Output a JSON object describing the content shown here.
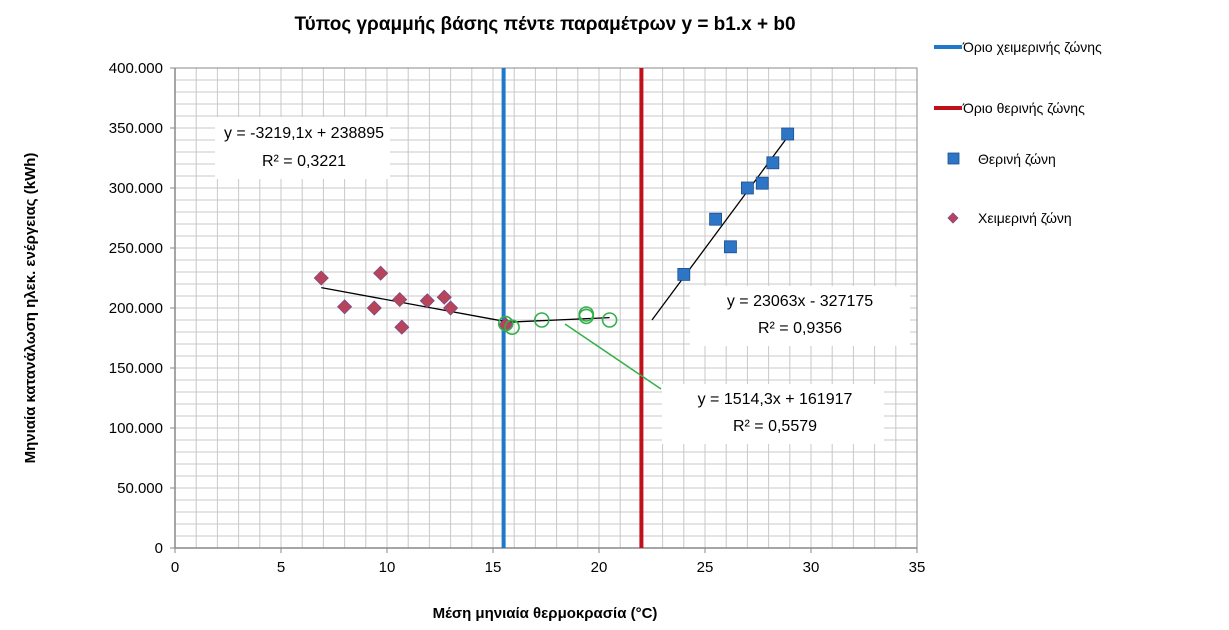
{
  "chart_data": {
    "type": "scatter",
    "title": "Τύπος γραμμής βάσης πέντε παραμέτρων  y = b1.x + b0",
    "xlabel": "Μέση μηνιαία θερμοκρασία (°C)",
    "ylabel": "Μηνιαία κατανάλωση ηλεκ. ενέργειας (kWh)",
    "xlim": [
      0,
      35
    ],
    "ylim": [
      0,
      400000
    ],
    "x_ticks": [
      "0",
      "5",
      "10",
      "15",
      "20",
      "25",
      "30",
      "35"
    ],
    "y_ticks": [
      "0",
      "50.000",
      "100.000",
      "150.000",
      "200.000",
      "250.000",
      "300.000",
      "350.000",
      "400.000"
    ],
    "grid": true,
    "legend_position": "right",
    "series": [
      {
        "name": "Όριο χειμερινής  ζώνης",
        "kind": "vline",
        "x": 15.5,
        "color": "#1f78c8"
      },
      {
        "name": "Όριο θερινής  ζώνης",
        "kind": "vline",
        "x": 22,
        "color": "#c0111a"
      },
      {
        "name": "Θερινή  ζώνη",
        "kind": "square",
        "color": "#2e75c6",
        "points": [
          [
            24.0,
            228000
          ],
          [
            25.5,
            274000
          ],
          [
            26.2,
            251000
          ],
          [
            27.0,
            300000
          ],
          [
            27.7,
            304000
          ],
          [
            28.2,
            321000
          ],
          [
            28.9,
            345000
          ]
        ]
      },
      {
        "name": "Χειμερινή  ζώνη",
        "kind": "diamond",
        "color": "#b8445a",
        "points": [
          [
            6.9,
            225000
          ],
          [
            8.0,
            201000
          ],
          [
            9.4,
            200000
          ],
          [
            9.7,
            229000
          ],
          [
            10.6,
            207000
          ],
          [
            10.7,
            184000
          ],
          [
            11.9,
            206000
          ],
          [
            12.7,
            209000
          ],
          [
            13.0,
            200000
          ],
          [
            15.6,
            186000
          ]
        ]
      },
      {
        "kind": "circle",
        "color": "#33b04a",
        "points": [
          [
            15.6,
            187000
          ],
          [
            15.9,
            184000
          ],
          [
            17.3,
            190000
          ],
          [
            19.4,
            193000
          ],
          [
            19.4,
            195000
          ],
          [
            20.5,
            190000
          ]
        ]
      }
    ],
    "trendlines": [
      {
        "kind": "winter",
        "color": "#000000",
        "from": [
          6.9,
          217000
        ],
        "to": [
          15.5,
          189000
        ]
      },
      {
        "kind": "middle",
        "color": "#000000",
        "from": [
          15.5,
          188000
        ],
        "to": [
          20.5,
          192000
        ]
      },
      {
        "kind": "summer",
        "color": "#000000",
        "from": [
          22.5,
          190000
        ],
        "to": [
          29.0,
          345000
        ]
      }
    ],
    "annotations": [
      {
        "equation": "y = -3219,1x + 238895",
        "r2": "R² = 0,3221"
      },
      {
        "equation": "y = 23063x - 327175",
        "r2": "R² = 0,9356"
      },
      {
        "equation": "y = 1514,3x + 161917",
        "r2": "R² = 0,5579"
      }
    ]
  }
}
